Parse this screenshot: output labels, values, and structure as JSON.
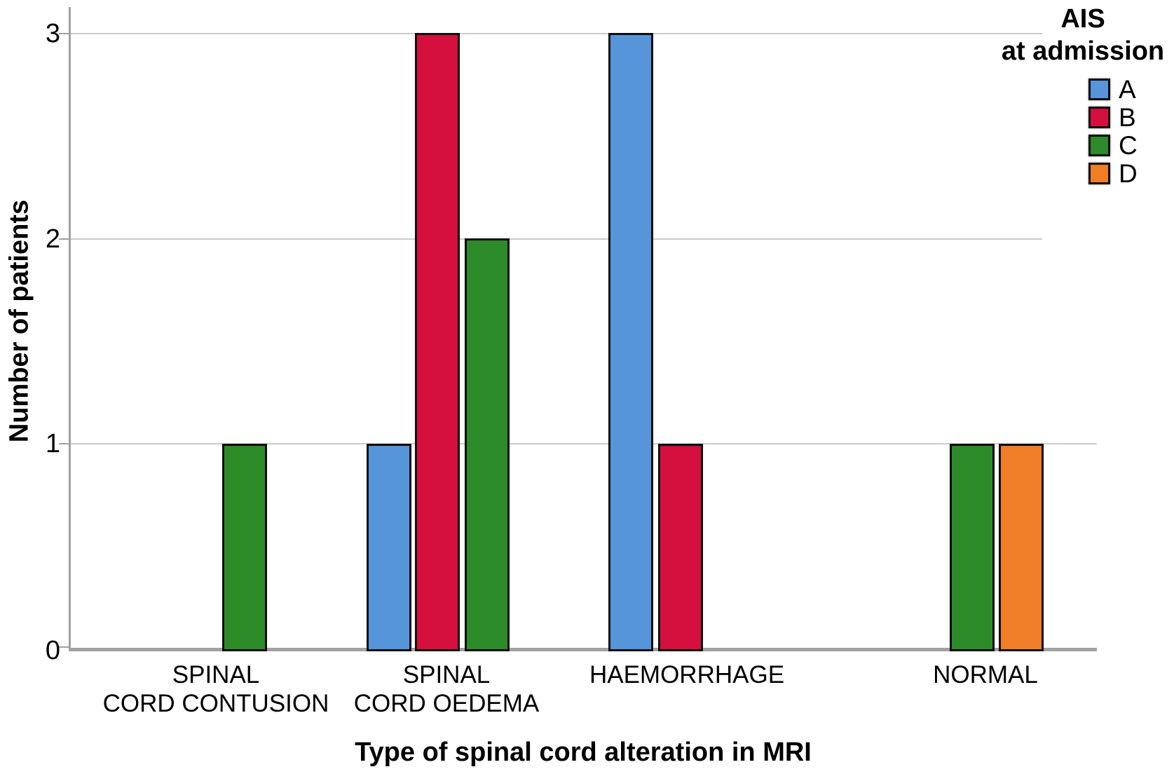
{
  "figure_type": "clustered-bar-chart",
  "axes": {
    "ylabel": "Number of patients",
    "xlabel": "Type of spinal cord alteration in MRI"
  },
  "legend": {
    "title_line1": "AIS",
    "title_line2": "at admission",
    "entries": [
      {
        "label": "A",
        "color": "#5795db"
      },
      {
        "label": "B",
        "color": "#d50f3e"
      },
      {
        "label": "C",
        "color": "#2e8b29"
      },
      {
        "label": "D",
        "color": "#f07d28"
      }
    ]
  },
  "chart_data": {
    "type": "bar",
    "grouping": "clustered",
    "title": "",
    "xlabel": "Type of spinal cord alteration in MRI",
    "ylabel": "Number of patients",
    "legend_title": "AIS at admission",
    "legend_position": "top-right",
    "grid": "horizontal",
    "ylim": [
      0,
      3
    ],
    "yticks": [
      0,
      1,
      2,
      3
    ],
    "categories": [
      "SPINAL\nCORD CONTUSION",
      "SPINAL\nCORD OEDEMA",
      "HAEMORRHAGE",
      "NORMAL"
    ],
    "series": [
      {
        "name": "A",
        "color": "#5795db",
        "values": [
          0,
          1,
          3,
          0
        ]
      },
      {
        "name": "B",
        "color": "#d50f3e",
        "values": [
          0,
          3,
          1,
          0
        ]
      },
      {
        "name": "C",
        "color": "#2e8b29",
        "values": [
          1,
          2,
          0,
          1
        ]
      },
      {
        "name": "D",
        "color": "#f07d28",
        "values": [
          0,
          0,
          0,
          1
        ]
      }
    ],
    "colors": {
      "gridline": "#cbcbcb",
      "axis": "#a1a1a1",
      "bar_border": "#0d0d0d"
    }
  }
}
